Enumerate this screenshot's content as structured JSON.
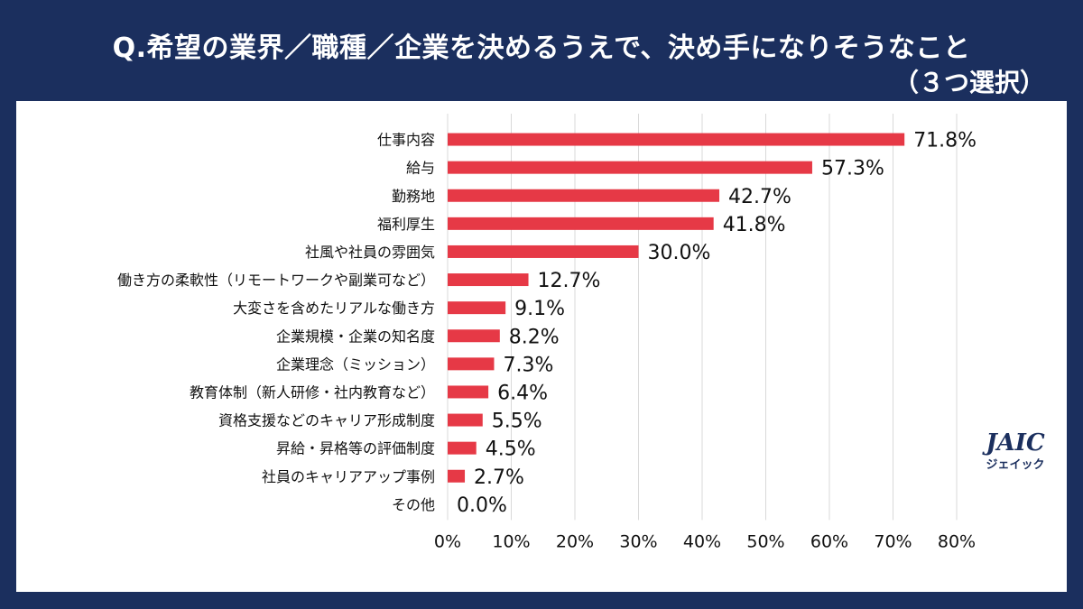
{
  "header": {
    "title": "Q.希望の業界／職種／企業を決めるうえで、決め手になりそうなこと",
    "subtitle": "（３つ選択）"
  },
  "logo": {
    "main": "JAIC",
    "sub": "ジェイック"
  },
  "colors": {
    "background": "#1b2f5e",
    "bar": "#e63946",
    "grid": "#d9d9d9",
    "text": "#111111"
  },
  "chart_data": {
    "type": "bar",
    "orientation": "horizontal",
    "title": "Q.希望の業界／職種／企業を決めるうえで、決め手になりそうなこと（３つ選択）",
    "categories": [
      "仕事内容",
      "給与",
      "勤務地",
      "福利厚生",
      "社風や社員の雰囲気",
      "働き方の柔軟性（リモートワークや副業可など）",
      "大変さを含めたリアルな働き方",
      "企業規模・企業の知名度",
      "企業理念（ミッション）",
      "教育体制（新人研修・社内教育など）",
      "資格支援などのキャリア形成制度",
      "昇給・昇格等の評価制度",
      "社員のキャリアアップ事例",
      "その他"
    ],
    "values": [
      71.8,
      57.3,
      42.7,
      41.8,
      30.0,
      12.7,
      9.1,
      8.2,
      7.3,
      6.4,
      5.5,
      4.5,
      2.7,
      0.0
    ],
    "value_labels": [
      "71.8%",
      "57.3%",
      "42.7%",
      "41.8%",
      "30.0%",
      "12.7%",
      "9.1%",
      "8.2%",
      "7.3%",
      "6.4%",
      "5.5%",
      "4.5%",
      "2.7%",
      "0.0%"
    ],
    "xlim": [
      0,
      80
    ],
    "xticks": [
      0,
      10,
      20,
      30,
      40,
      50,
      60,
      70,
      80
    ],
    "xtick_labels": [
      "0%",
      "10%",
      "20%",
      "30%",
      "40%",
      "50%",
      "60%",
      "70%",
      "80%"
    ],
    "grid": true,
    "xlabel": "",
    "ylabel": ""
  }
}
